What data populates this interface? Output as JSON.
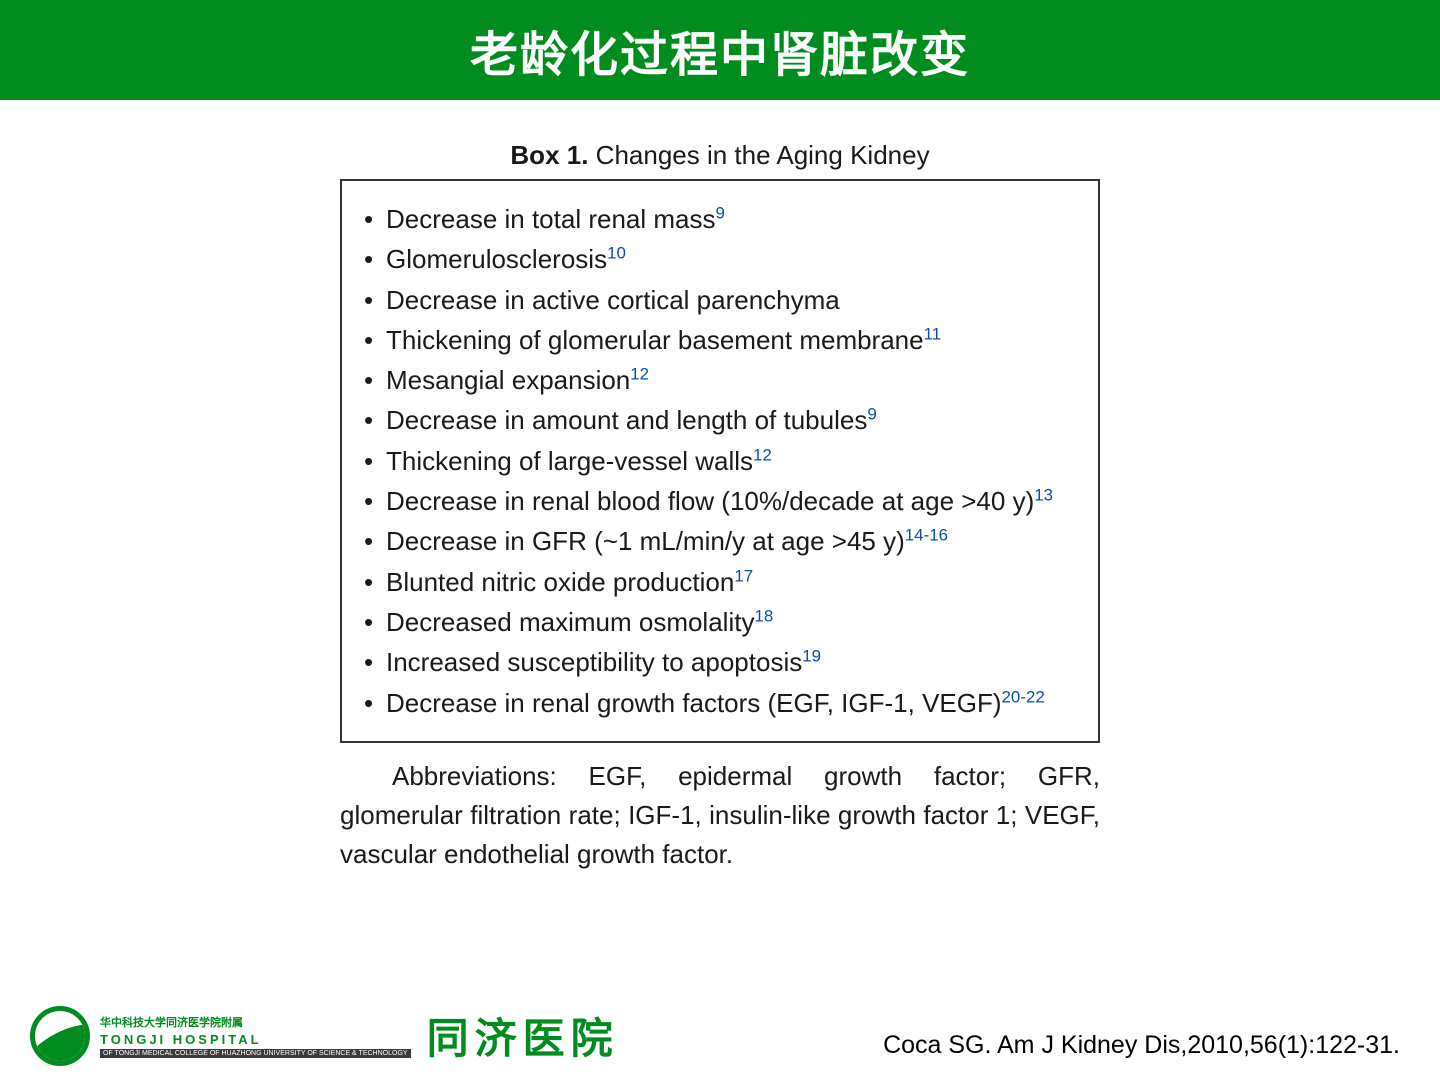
{
  "header": {
    "title": "老龄化过程中肾脏改变"
  },
  "box": {
    "title_bold": "Box 1.",
    "title_rest": " Changes in the Aging Kidney",
    "items": [
      {
        "text": "Decrease in total renal mass",
        "sup": "9"
      },
      {
        "text": "Glomerulosclerosis",
        "sup": "10"
      },
      {
        "text": "Decrease in active cortical parenchyma",
        "sup": ""
      },
      {
        "text": "Thickening of glomerular basement membrane",
        "sup": "11"
      },
      {
        "text": "Mesangial expansion",
        "sup": "12"
      },
      {
        "text": "Decrease in amount and length of tubules",
        "sup": "9"
      },
      {
        "text": "Thickening of large-vessel walls",
        "sup": "12"
      },
      {
        "text": "Decrease in renal blood flow (10%/decade at age >40 y)",
        "sup": "13"
      },
      {
        "text": "Decrease in GFR (~1 mL/min/y at age >45 y)",
        "sup": "14-16"
      },
      {
        "text": "Blunted nitric oxide production",
        "sup": "17"
      },
      {
        "text": "Decreased maximum osmolality",
        "sup": "18"
      },
      {
        "text": "Increased susceptibility to apoptosis",
        "sup": "19"
      },
      {
        "text": "Decrease in renal growth factors (EGF, IGF-1, VEGF)",
        "sup": "20-22"
      }
    ],
    "abbrev": "Abbreviations: EGF, epidermal growth factor; GFR, glomerular filtration rate; IGF-1, insulin-like growth factor 1; VEGF, vascular endothelial growth factor."
  },
  "logo": {
    "cn": "华中科技大学同济医学院附属",
    "en": "TONGJI HOSPITAL",
    "bar": "OF TONGJI MEDICAL COLLEGE OF HUAZHONG UNIVERSITY OF SCIENCE & TECHNOLOGY",
    "name": "同济医院"
  },
  "citation": "Coca SG. Am J Kidney Dis,2010,56(1):122-31.",
  "colors": {
    "header_bg": "#008c1e",
    "text": "#1a1a1a",
    "sup": "#0a4db3",
    "border": "#333333"
  }
}
